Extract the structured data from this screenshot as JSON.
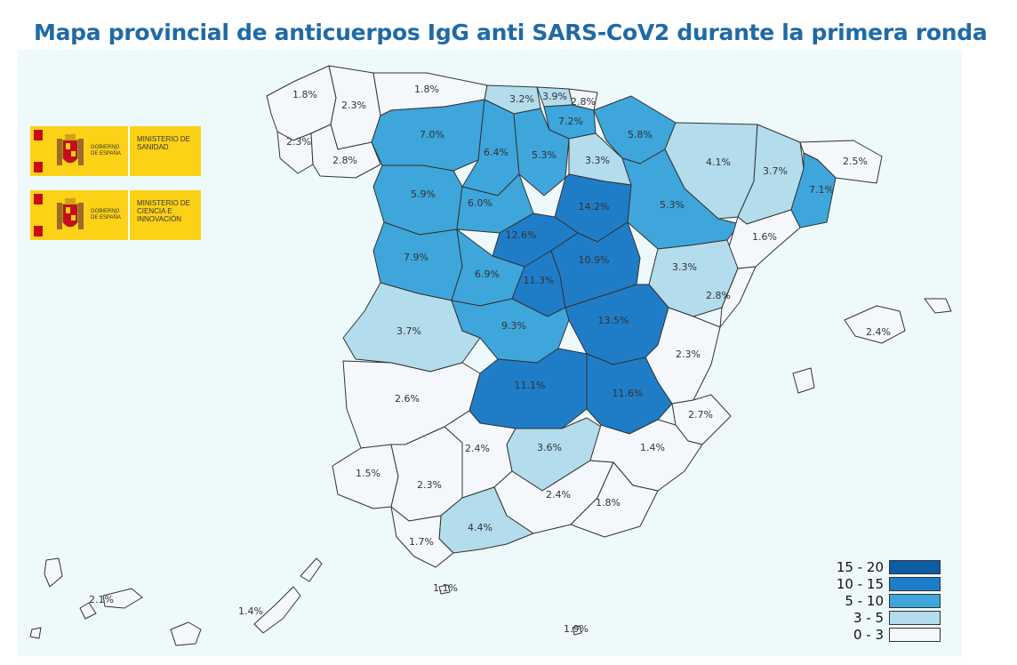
{
  "title": "Mapa provincial de anticuerpos IgG anti SARS-CoV2 durante la primera ronda",
  "logos": [
    {
      "left_text": "GOBIERNO DE ESPAÑA",
      "right_text": "MINISTERIO DE SANIDAD"
    },
    {
      "left_text": "GOBIERNO DE ESPAÑA",
      "right_text": "MINISTERIO DE CIENCIA E INNOVACIÓN"
    }
  ],
  "colors": {
    "c0": "#f4f8fc",
    "c1": "#b3dcec",
    "c2": "#3ea6db",
    "c3": "#1f7dc8",
    "c4": "#0d5ca6",
    "border": "#333333"
  },
  "legend": [
    {
      "label": "15 - 20",
      "color_key": "c4"
    },
    {
      "label": "10 - 15",
      "color_key": "c3"
    },
    {
      "label": "5 - 10",
      "color_key": "c2"
    },
    {
      "label": "3 - 5",
      "color_key": "c1"
    },
    {
      "label": "0 - 3",
      "color_key": "c0"
    }
  ],
  "provinces": [
    {
      "name": "A Coruña",
      "value": "1.8%",
      "cls": "c0"
    },
    {
      "name": "Lugo",
      "value": "2.3%",
      "cls": "c0"
    },
    {
      "name": "Pontevedra",
      "value": "2.3%",
      "cls": "c0"
    },
    {
      "name": "Ourense",
      "value": "2.8%",
      "cls": "c0"
    },
    {
      "name": "Asturias",
      "value": "1.8%",
      "cls": "c0"
    },
    {
      "name": "Cantabria",
      "value": "3.2%",
      "cls": "c1"
    },
    {
      "name": "Bizkaia",
      "value": "3.9%",
      "cls": "c1"
    },
    {
      "name": "Gipuzkoa",
      "value": "2.8%",
      "cls": "c0"
    },
    {
      "name": "Araba",
      "value": "7.2%",
      "cls": "c2"
    },
    {
      "name": "Navarra",
      "value": "5.8%",
      "cls": "c2"
    },
    {
      "name": "León",
      "value": "7.0%",
      "cls": "c2"
    },
    {
      "name": "Palencia",
      "value": "6.4%",
      "cls": "c2"
    },
    {
      "name": "Burgos",
      "value": "5.3%",
      "cls": "c2"
    },
    {
      "name": "La Rioja",
      "value": "3.3%",
      "cls": "c1"
    },
    {
      "name": "Huesca",
      "value": "4.1%",
      "cls": "c1"
    },
    {
      "name": "Lleida",
      "value": "3.7%",
      "cls": "c1"
    },
    {
      "name": "Girona",
      "value": "2.5%",
      "cls": "c0"
    },
    {
      "name": "Barcelona",
      "value": "7.1%",
      "cls": "c2"
    },
    {
      "name": "Zamora",
      "value": "5.9%",
      "cls": "c2"
    },
    {
      "name": "Valladolid",
      "value": "6.0%",
      "cls": "c2"
    },
    {
      "name": "Soria",
      "value": "14.2%",
      "cls": "c3"
    },
    {
      "name": "Zaragoza",
      "value": "5.3%",
      "cls": "c2"
    },
    {
      "name": "Tarragona",
      "value": "1.6%",
      "cls": "c0"
    },
    {
      "name": "Segovia",
      "value": "12.6%",
      "cls": "c3"
    },
    {
      "name": "Salamanca",
      "value": "7.9%",
      "cls": "c2"
    },
    {
      "name": "Ávila",
      "value": "6.9%",
      "cls": "c2"
    },
    {
      "name": "Madrid",
      "value": "11.3%",
      "cls": "c3"
    },
    {
      "name": "Guadalajara",
      "value": "10.9%",
      "cls": "c3"
    },
    {
      "name": "Teruel",
      "value": "3.3%",
      "cls": "c1"
    },
    {
      "name": "Castellón",
      "value": "2.8%",
      "cls": "c0"
    },
    {
      "name": "Cáceres",
      "value": "3.7%",
      "cls": "c1"
    },
    {
      "name": "Toledo",
      "value": "9.3%",
      "cls": "c2"
    },
    {
      "name": "Cuenca",
      "value": "13.5%",
      "cls": "c3"
    },
    {
      "name": "Valencia",
      "value": "2.3%",
      "cls": "c0"
    },
    {
      "name": "Badajoz",
      "value": "2.6%",
      "cls": "c0"
    },
    {
      "name": "Ciudad Real",
      "value": "11.1%",
      "cls": "c3"
    },
    {
      "name": "Albacete",
      "value": "11.6%",
      "cls": "c3"
    },
    {
      "name": "Alicante",
      "value": "2.7%",
      "cls": "c0"
    },
    {
      "name": "Huelva",
      "value": "1.5%",
      "cls": "c0"
    },
    {
      "name": "Sevilla",
      "value": "2.3%",
      "cls": "c0"
    },
    {
      "name": "Córdoba",
      "value": "2.4%",
      "cls": "c0"
    },
    {
      "name": "Jaén",
      "value": "3.6%",
      "cls": "c1"
    },
    {
      "name": "Granada",
      "value": "2.4%",
      "cls": "c0"
    },
    {
      "name": "Murcia",
      "value": "1.4%",
      "cls": "c0"
    },
    {
      "name": "Almería",
      "value": "1.8%",
      "cls": "c0"
    },
    {
      "name": "Málaga",
      "value": "4.4%",
      "cls": "c1"
    },
    {
      "name": "Cádiz",
      "value": "1.7%",
      "cls": "c0"
    },
    {
      "name": "Baleares",
      "value": "2.4%",
      "cls": "c0"
    },
    {
      "name": "Santa Cruz de Tenerife",
      "value": "2.1%",
      "cls": "c0"
    },
    {
      "name": "Las Palmas",
      "value": "1.4%",
      "cls": "c0"
    },
    {
      "name": "Ceuta",
      "value": "1.1%",
      "cls": "c0"
    },
    {
      "name": "Melilla",
      "value": "1.9%",
      "cls": "c0"
    }
  ]
}
